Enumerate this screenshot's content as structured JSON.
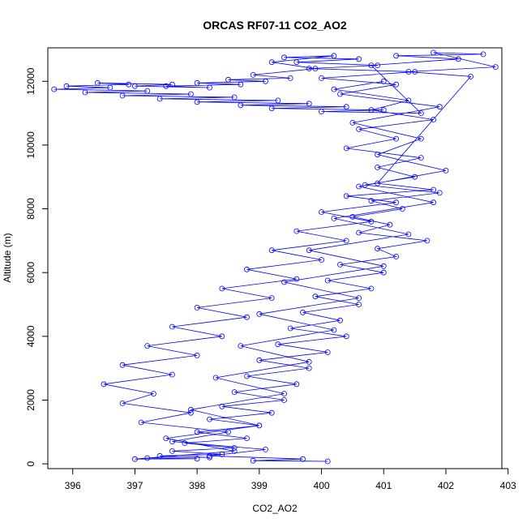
{
  "chart_data": {
    "type": "scatter",
    "title": "ORCAS RF07-11 CO2_AO2",
    "xlabel": "CO2_AO2",
    "ylabel": "Altitude (m)",
    "xlim": [
      395.6,
      402.9
    ],
    "ylim": [
      -150,
      13050
    ],
    "xticks": [
      396,
      397,
      398,
      399,
      400,
      401,
      402,
      403
    ],
    "yticks": [
      0,
      2000,
      4000,
      6000,
      8000,
      10000,
      12000
    ],
    "marker": "open-circle",
    "connected": true,
    "series_color": "#0000ff",
    "grid": false,
    "series": [
      {
        "x": [
          401.0,
          400.2,
          401.4,
          400.8,
          401.8,
          400.6,
          401.2,
          400.4,
          401.6,
          400.9,
          401.5,
          400.7,
          401.9,
          400.8,
          401.3,
          400.5,
          401.1,
          400.6,
          401.7,
          400.9,
          401.2,
          400.3,
          401.0,
          400.1,
          400.8,
          399.9,
          400.6,
          399.7,
          400.3,
          399.5,
          400.4,
          399.3,
          400.1,
          399.0,
          399.8,
          398.8,
          399.6,
          398.6,
          399.4,
          398.4,
          399.2,
          398.2,
          399.0,
          398.0,
          398.8,
          397.8,
          398.6,
          397.6,
          398.4,
          397.4,
          398.2,
          397.2,
          398.0,
          397.0,
          398.6,
          397.5,
          399.0,
          397.9,
          399.4,
          398.3,
          399.8,
          398.7,
          400.2,
          399.0,
          400.6,
          399.4,
          401.0,
          399.8,
          401.4,
          400.2,
          401.8,
          400.6,
          402.0,
          400.9,
          401.6,
          400.5,
          401.9,
          400.3,
          401.2,
          400.0,
          401.5,
          399.8,
          400.9,
          399.6,
          400.6,
          399.4,
          400.2,
          399.2,
          399.9,
          398.9,
          399.5,
          398.5,
          399.1,
          398.0,
          398.7,
          397.5,
          398.2,
          397.0,
          397.6,
          396.4,
          396.9,
          395.9,
          396.6,
          395.7,
          397.2,
          396.2,
          397.9,
          396.8,
          398.6,
          397.4,
          399.3,
          398.0,
          399.8,
          398.7,
          400.4,
          399.2,
          401.0,
          400.0,
          401.6,
          400.8,
          402.2,
          401.2,
          402.6,
          401.8,
          402.8,
          401.4,
          402.4,
          400.9,
          401.8,
          400.4,
          401.2,
          400.0,
          400.8,
          399.6,
          400.4,
          399.2,
          400.0,
          398.8,
          399.6,
          398.4,
          399.2,
          398.0,
          398.8,
          397.6,
          398.4,
          397.2,
          398.0,
          396.8,
          397.6,
          396.5,
          397.3,
          396.8,
          397.9,
          397.1,
          398.5,
          397.6,
          399.1,
          398.2,
          399.7,
          398.9,
          400.1
        ],
        "y": [
          12000,
          11750,
          11400,
          11100,
          10800,
          10500,
          10200,
          9900,
          9600,
          9300,
          9000,
          8750,
          8500,
          8250,
          8000,
          7750,
          7500,
          7250,
          7000,
          6750,
          6500,
          6250,
          6000,
          5750,
          5500,
          5250,
          5000,
          4750,
          4500,
          4250,
          4000,
          3750,
          3500,
          3250,
          3000,
          2750,
          2500,
          2250,
          2000,
          1800,
          1600,
          1400,
          1200,
          1000,
          800,
          650,
          500,
          400,
          300,
          250,
          200,
          180,
          160,
          150,
          400,
          800,
          1200,
          1700,
          2200,
          2700,
          3200,
          3700,
          4200,
          4700,
          5200,
          5700,
          6200,
          6700,
          7200,
          7700,
          8200,
          8700,
          9200,
          9700,
          10200,
          10700,
          11200,
          11600,
          11900,
          12100,
          12300,
          12400,
          12500,
          12600,
          12700,
          12750,
          12800,
          12600,
          12400,
          12200,
          12100,
          12050,
          12000,
          11950,
          11900,
          11850,
          11800,
          11850,
          11900,
          11950,
          11900,
          11850,
          11800,
          11750,
          11700,
          11650,
          11600,
          11550,
          11500,
          11450,
          11400,
          11350,
          11300,
          11250,
          11200,
          11150,
          11100,
          11050,
          11000,
          12500,
          12700,
          12800,
          12850,
          12900,
          12450,
          12300,
          12150,
          8800,
          8600,
          8400,
          8200,
          7900,
          7600,
          7300,
          7000,
          6700,
          6400,
          6100,
          5800,
          5500,
          5200,
          4900,
          4600,
          4300,
          4000,
          3700,
          3400,
          3100,
          2800,
          2500,
          2200,
          1900,
          1600,
          1300,
          1000,
          700,
          450,
          250,
          150,
          100,
          80
        ]
      }
    ]
  }
}
